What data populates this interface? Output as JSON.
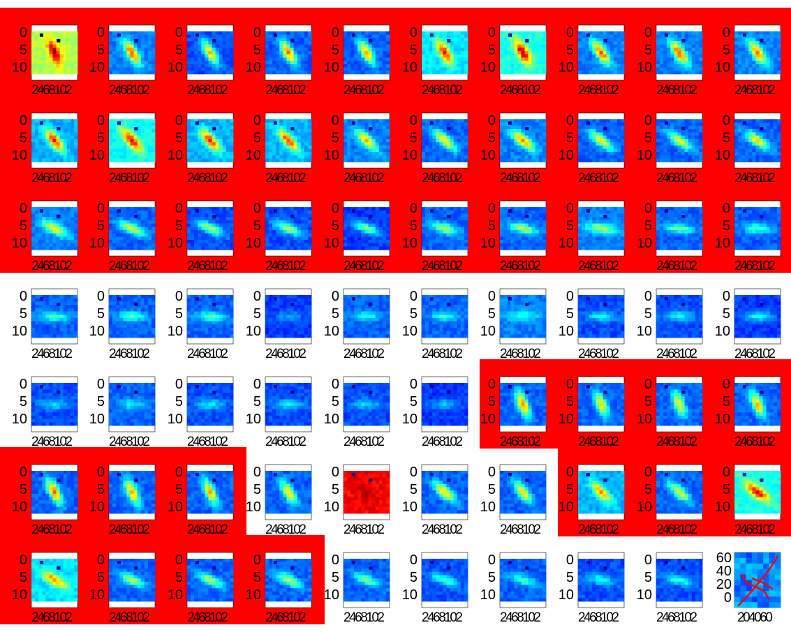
{
  "figure": {
    "rows": 7,
    "columns": 10,
    "highlight_color": "#ff0000",
    "colormap": "jet",
    "panel_count": 70
  },
  "chart_data": [
    {
      "type": "heatmap",
      "panel_grid": "7 rows x 10 columns of small image panels",
      "y_ticks": [
        "0",
        "5",
        "10"
      ],
      "x_ticks": [
        "2",
        "4",
        "6",
        "8",
        "10",
        "12"
      ],
      "x_tick_label": "2468102",
      "colormap": "jet",
      "panels": [
        {
          "row": 1,
          "col": 1,
          "highlighted": true,
          "blob_angle_deg": -70,
          "intensity": 0.95,
          "background": 0.55
        },
        {
          "row": 1,
          "col": 2,
          "highlighted": true,
          "blob_angle_deg": -62,
          "intensity": 0.8,
          "background": 0.25
        },
        {
          "row": 1,
          "col": 3,
          "highlighted": true,
          "blob_angle_deg": -62,
          "intensity": 0.7,
          "background": 0.2
        },
        {
          "row": 1,
          "col": 4,
          "highlighted": true,
          "blob_angle_deg": -62,
          "intensity": 0.75,
          "background": 0.22
        },
        {
          "row": 1,
          "col": 5,
          "highlighted": true,
          "blob_angle_deg": -62,
          "intensity": 0.72,
          "background": 0.22
        },
        {
          "row": 1,
          "col": 6,
          "highlighted": true,
          "blob_angle_deg": -62,
          "intensity": 0.85,
          "background": 0.35
        },
        {
          "row": 1,
          "col": 7,
          "highlighted": true,
          "blob_angle_deg": -62,
          "intensity": 0.95,
          "background": 0.4
        },
        {
          "row": 1,
          "col": 8,
          "highlighted": true,
          "blob_angle_deg": -58,
          "intensity": 0.8,
          "background": 0.25
        },
        {
          "row": 1,
          "col": 9,
          "highlighted": true,
          "blob_angle_deg": -58,
          "intensity": 0.8,
          "background": 0.25
        },
        {
          "row": 1,
          "col": 10,
          "highlighted": true,
          "blob_angle_deg": -58,
          "intensity": 0.78,
          "background": 0.25
        },
        {
          "row": 2,
          "col": 1,
          "highlighted": true,
          "blob_angle_deg": -55,
          "intensity": 0.85,
          "background": 0.3
        },
        {
          "row": 2,
          "col": 2,
          "highlighted": true,
          "blob_angle_deg": -52,
          "intensity": 0.9,
          "background": 0.38
        },
        {
          "row": 2,
          "col": 3,
          "highlighted": true,
          "blob_angle_deg": -52,
          "intensity": 0.85,
          "background": 0.3
        },
        {
          "row": 2,
          "col": 4,
          "highlighted": true,
          "blob_angle_deg": -50,
          "intensity": 0.82,
          "background": 0.3
        },
        {
          "row": 2,
          "col": 5,
          "highlighted": true,
          "blob_angle_deg": -48,
          "intensity": 0.7,
          "background": 0.25
        },
        {
          "row": 2,
          "col": 6,
          "highlighted": true,
          "blob_angle_deg": -45,
          "intensity": 0.68,
          "background": 0.22
        },
        {
          "row": 2,
          "col": 7,
          "highlighted": true,
          "blob_angle_deg": -42,
          "intensity": 0.75,
          "background": 0.25
        },
        {
          "row": 2,
          "col": 8,
          "highlighted": true,
          "blob_angle_deg": -40,
          "intensity": 0.62,
          "background": 0.22
        },
        {
          "row": 2,
          "col": 9,
          "highlighted": true,
          "blob_angle_deg": -38,
          "intensity": 0.62,
          "background": 0.22
        },
        {
          "row": 2,
          "col": 10,
          "highlighted": true,
          "blob_angle_deg": -36,
          "intensity": 0.65,
          "background": 0.22
        },
        {
          "row": 3,
          "col": 1,
          "highlighted": true,
          "blob_angle_deg": -30,
          "intensity": 0.62,
          "background": 0.25
        },
        {
          "row": 3,
          "col": 2,
          "highlighted": true,
          "blob_angle_deg": -28,
          "intensity": 0.6,
          "background": 0.22
        },
        {
          "row": 3,
          "col": 3,
          "highlighted": true,
          "blob_angle_deg": -26,
          "intensity": 0.55,
          "background": 0.2
        },
        {
          "row": 3,
          "col": 4,
          "highlighted": true,
          "blob_angle_deg": -24,
          "intensity": 0.55,
          "background": 0.2
        },
        {
          "row": 3,
          "col": 5,
          "highlighted": true,
          "blob_angle_deg": -22,
          "intensity": 0.5,
          "background": 0.18
        },
        {
          "row": 3,
          "col": 6,
          "highlighted": true,
          "blob_angle_deg": -20,
          "intensity": 0.55,
          "background": 0.22
        },
        {
          "row": 3,
          "col": 7,
          "highlighted": true,
          "blob_angle_deg": -16,
          "intensity": 0.55,
          "background": 0.22
        },
        {
          "row": 3,
          "col": 8,
          "highlighted": true,
          "blob_angle_deg": -8,
          "intensity": 0.55,
          "background": 0.25
        },
        {
          "row": 3,
          "col": 9,
          "highlighted": true,
          "blob_angle_deg": -6,
          "intensity": 0.48,
          "background": 0.22
        },
        {
          "row": 3,
          "col": 10,
          "highlighted": true,
          "blob_angle_deg": -4,
          "intensity": 0.45,
          "background": 0.22
        },
        {
          "row": 4,
          "col": 1,
          "highlighted": false,
          "blob_angle_deg": -4,
          "intensity": 0.45,
          "background": 0.22
        },
        {
          "row": 4,
          "col": 2,
          "highlighted": false,
          "blob_angle_deg": -4,
          "intensity": 0.45,
          "background": 0.22
        },
        {
          "row": 4,
          "col": 3,
          "highlighted": false,
          "blob_angle_deg": -4,
          "intensity": 0.45,
          "background": 0.22
        },
        {
          "row": 4,
          "col": 4,
          "highlighted": false,
          "blob_angle_deg": 0,
          "intensity": 0.28,
          "background": 0.18
        },
        {
          "row": 4,
          "col": 5,
          "highlighted": false,
          "blob_angle_deg": 0,
          "intensity": 0.4,
          "background": 0.22
        },
        {
          "row": 4,
          "col": 6,
          "highlighted": false,
          "blob_angle_deg": 0,
          "intensity": 0.42,
          "background": 0.22
        },
        {
          "row": 4,
          "col": 7,
          "highlighted": false,
          "blob_angle_deg": 0,
          "intensity": 0.42,
          "background": 0.25
        },
        {
          "row": 4,
          "col": 8,
          "highlighted": false,
          "blob_angle_deg": 0,
          "intensity": 0.38,
          "background": 0.2
        },
        {
          "row": 4,
          "col": 9,
          "highlighted": false,
          "blob_angle_deg": 0,
          "intensity": 0.38,
          "background": 0.2
        },
        {
          "row": 4,
          "col": 10,
          "highlighted": false,
          "blob_angle_deg": 0,
          "intensity": 0.4,
          "background": 0.18
        },
        {
          "row": 5,
          "col": 1,
          "highlighted": false,
          "blob_angle_deg": 0,
          "intensity": 0.35,
          "background": 0.2
        },
        {
          "row": 5,
          "col": 2,
          "highlighted": false,
          "blob_angle_deg": 0,
          "intensity": 0.38,
          "background": 0.22
        },
        {
          "row": 5,
          "col": 3,
          "highlighted": false,
          "blob_angle_deg": 0,
          "intensity": 0.36,
          "background": 0.2
        },
        {
          "row": 5,
          "col": 4,
          "highlighted": false,
          "blob_angle_deg": 0,
          "intensity": 0.36,
          "background": 0.2
        },
        {
          "row": 5,
          "col": 5,
          "highlighted": false,
          "blob_angle_deg": 0,
          "intensity": 0.34,
          "background": 0.2
        },
        {
          "row": 5,
          "col": 6,
          "highlighted": false,
          "blob_angle_deg": 0,
          "intensity": 0.32,
          "background": 0.18
        },
        {
          "row": 5,
          "col": 7,
          "highlighted": true,
          "blob_angle_deg": -70,
          "intensity": 0.75,
          "background": 0.22
        },
        {
          "row": 5,
          "col": 8,
          "highlighted": true,
          "blob_angle_deg": -70,
          "intensity": 0.65,
          "background": 0.22
        },
        {
          "row": 5,
          "col": 9,
          "highlighted": true,
          "blob_angle_deg": -72,
          "intensity": 0.62,
          "background": 0.22
        },
        {
          "row": 5,
          "col": 10,
          "highlighted": true,
          "blob_angle_deg": -68,
          "intensity": 0.7,
          "background": 0.22
        },
        {
          "row": 6,
          "col": 1,
          "highlighted": true,
          "blob_angle_deg": -65,
          "intensity": 0.75,
          "background": 0.22
        },
        {
          "row": 6,
          "col": 2,
          "highlighted": true,
          "blob_angle_deg": -68,
          "intensity": 0.72,
          "background": 0.22
        },
        {
          "row": 6,
          "col": 3,
          "highlighted": true,
          "blob_angle_deg": -68,
          "intensity": 0.7,
          "background": 0.22
        },
        {
          "row": 6,
          "col": 4,
          "highlighted": false,
          "blob_angle_deg": -62,
          "intensity": 0.65,
          "background": 0.22
        },
        {
          "row": 6,
          "col": 5,
          "highlighted": false,
          "blob_angle_deg": -45,
          "intensity": 0.95,
          "background": 0.88
        },
        {
          "row": 6,
          "col": 6,
          "highlighted": false,
          "blob_angle_deg": -45,
          "intensity": 0.68,
          "background": 0.22
        },
        {
          "row": 6,
          "col": 7,
          "highlighted": false,
          "blob_angle_deg": -55,
          "intensity": 0.65,
          "background": 0.22
        },
        {
          "row": 6,
          "col": 8,
          "highlighted": true,
          "blob_angle_deg": -50,
          "intensity": 0.72,
          "background": 0.3
        },
        {
          "row": 6,
          "col": 9,
          "highlighted": true,
          "blob_angle_deg": -45,
          "intensity": 0.6,
          "background": 0.22
        },
        {
          "row": 6,
          "col": 10,
          "highlighted": true,
          "blob_angle_deg": -40,
          "intensity": 0.9,
          "background": 0.4
        },
        {
          "row": 7,
          "col": 1,
          "highlighted": true,
          "blob_angle_deg": -35,
          "intensity": 0.75,
          "background": 0.35
        },
        {
          "row": 7,
          "col": 2,
          "highlighted": true,
          "blob_angle_deg": -30,
          "intensity": 0.55,
          "background": 0.22
        },
        {
          "row": 7,
          "col": 3,
          "highlighted": true,
          "blob_angle_deg": -28,
          "intensity": 0.55,
          "background": 0.22
        },
        {
          "row": 7,
          "col": 4,
          "highlighted": true,
          "blob_angle_deg": -28,
          "intensity": 0.55,
          "background": 0.22
        },
        {
          "row": 7,
          "col": 5,
          "highlighted": false,
          "blob_angle_deg": -25,
          "intensity": 0.48,
          "background": 0.22
        },
        {
          "row": 7,
          "col": 6,
          "highlighted": false,
          "blob_angle_deg": -22,
          "intensity": 0.45,
          "background": 0.2
        },
        {
          "row": 7,
          "col": 7,
          "highlighted": false,
          "blob_angle_deg": -18,
          "intensity": 0.42,
          "background": 0.22
        },
        {
          "row": 7,
          "col": 8,
          "highlighted": false,
          "blob_angle_deg": -15,
          "intensity": 0.4,
          "background": 0.2
        },
        {
          "row": 7,
          "col": 9,
          "highlighted": false,
          "blob_angle_deg": -12,
          "intensity": 0.42,
          "background": 0.2
        },
        {
          "row": 7,
          "col": 10,
          "highlighted": false,
          "special": "trajectory"
        }
      ]
    },
    {
      "type": "line",
      "panel": "row 7, column 10",
      "x_ticks": [
        "20",
        "40",
        "60"
      ],
      "y_ticks": [
        "60",
        "40",
        "20",
        "0"
      ],
      "x_tick_label": "204060",
      "line_color": "#ff0000",
      "series": [
        {
          "x": [
            5,
            20,
            35,
            45,
            55,
            62
          ],
          "y": [
            2,
            15,
            30,
            40,
            52,
            62
          ]
        },
        {
          "x": [
            10,
            18,
            30,
            42,
            50
          ],
          "y": [
            40,
            30,
            25,
            20,
            10
          ]
        },
        {
          "x": [
            25,
            35,
            45,
            55
          ],
          "y": [
            35,
            32,
            28,
            22
          ]
        }
      ]
    }
  ]
}
